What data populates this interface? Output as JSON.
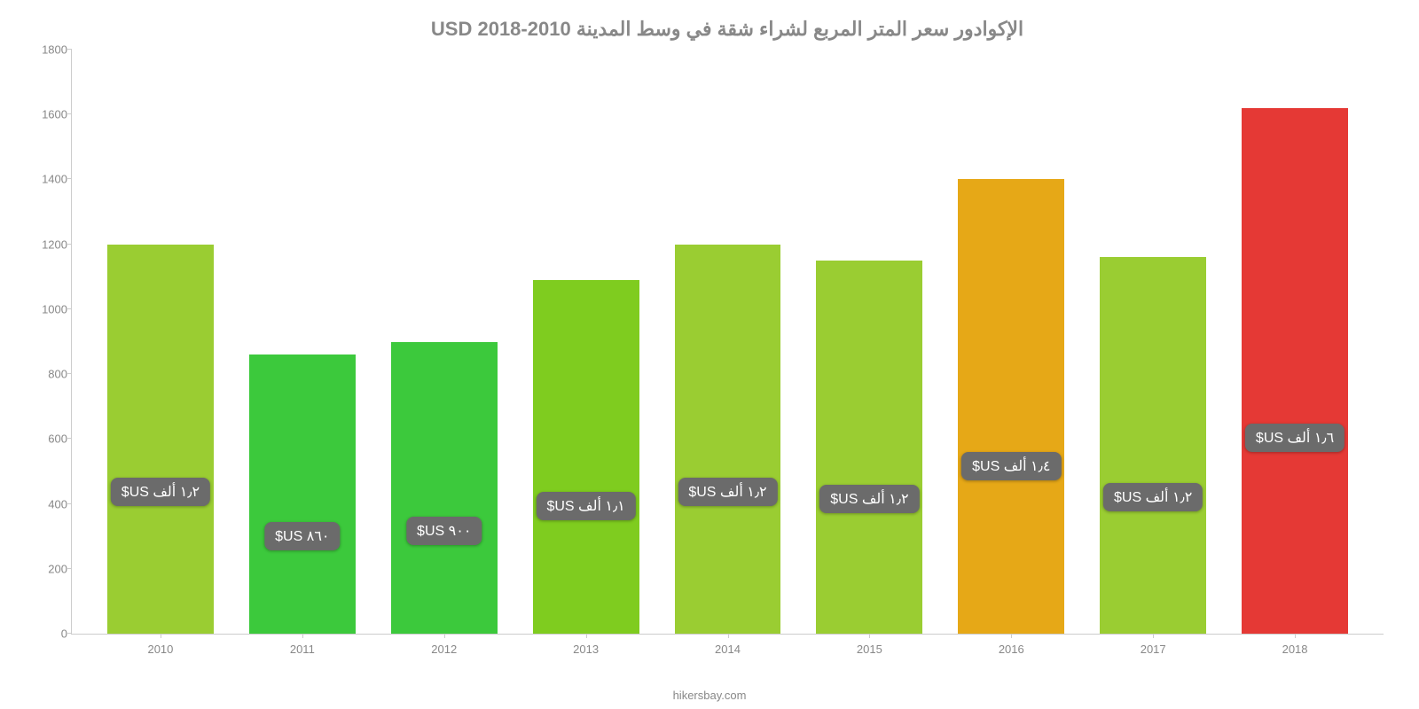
{
  "chart": {
    "type": "bar",
    "title": "الإكوادور سعر المتر المربع لشراء شقة في وسط المدينة 2010-2018 USD",
    "title_fontsize": 22,
    "title_color": "#888888",
    "footer": "hikersbay.com",
    "footer_color": "#888888",
    "background_color": "#ffffff",
    "axis_color": "#cccccc",
    "tick_label_color": "#888888",
    "tick_fontsize": 13,
    "ylim": [
      0,
      1800
    ],
    "ytick_step": 200,
    "y_ticks": [
      0,
      200,
      400,
      600,
      800,
      1000,
      1200,
      1400,
      1600,
      1800
    ],
    "categories": [
      "2010",
      "2011",
      "2012",
      "2013",
      "2014",
      "2015",
      "2016",
      "2017",
      "2018"
    ],
    "values": [
      1200,
      860,
      900,
      1090,
      1200,
      1150,
      1400,
      1160,
      1620
    ],
    "bar_colors": [
      "#9acd32",
      "#3cc93c",
      "#3cc93c",
      "#7fcc1f",
      "#9acd32",
      "#9acd32",
      "#e6a817",
      "#9acd32",
      "#e53935"
    ],
    "value_labels": [
      "١٫٢ ألف US$",
      "٨٦٠ US$",
      "٩٠٠ US$",
      "١٫١ ألف US$",
      "١٫٢ ألف US$",
      "١٫٢ ألف US$",
      "١٫٤ ألف US$",
      "١٫٢ ألف US$",
      "١٫٦ ألف US$"
    ],
    "value_label_bg": "#6b6b6b",
    "value_label_color": "#ffffff",
    "value_label_fontsize": 16,
    "value_label_radius": 8,
    "value_label_offset_pct": 60,
    "bar_width_pct": 75
  }
}
